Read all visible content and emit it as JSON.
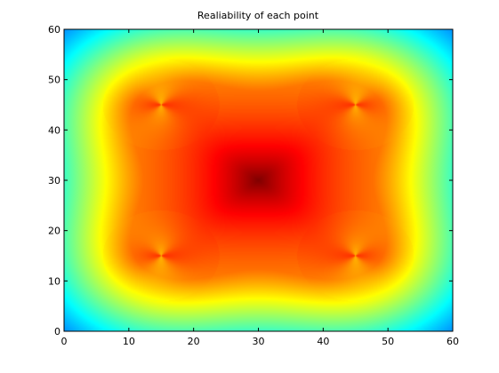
{
  "chart_data": {
    "type": "heatmap",
    "title": "Realiability of each point",
    "xlabel": "",
    "ylabel": "",
    "xlim": [
      0,
      60
    ],
    "ylim": [
      0,
      60
    ],
    "x_ticks": [
      "0",
      "10",
      "20",
      "30",
      "40",
      "50",
      "60"
    ],
    "y_ticks": [
      "0",
      "10",
      "20",
      "30",
      "40",
      "50",
      "60"
    ],
    "colormap": "jet",
    "grid": false,
    "legend": "none",
    "sensor_points": [
      [
        15,
        15
      ],
      [
        45,
        15
      ],
      [
        15,
        45
      ],
      [
        45,
        45
      ]
    ],
    "peak_center": [
      30,
      30
    ]
  }
}
